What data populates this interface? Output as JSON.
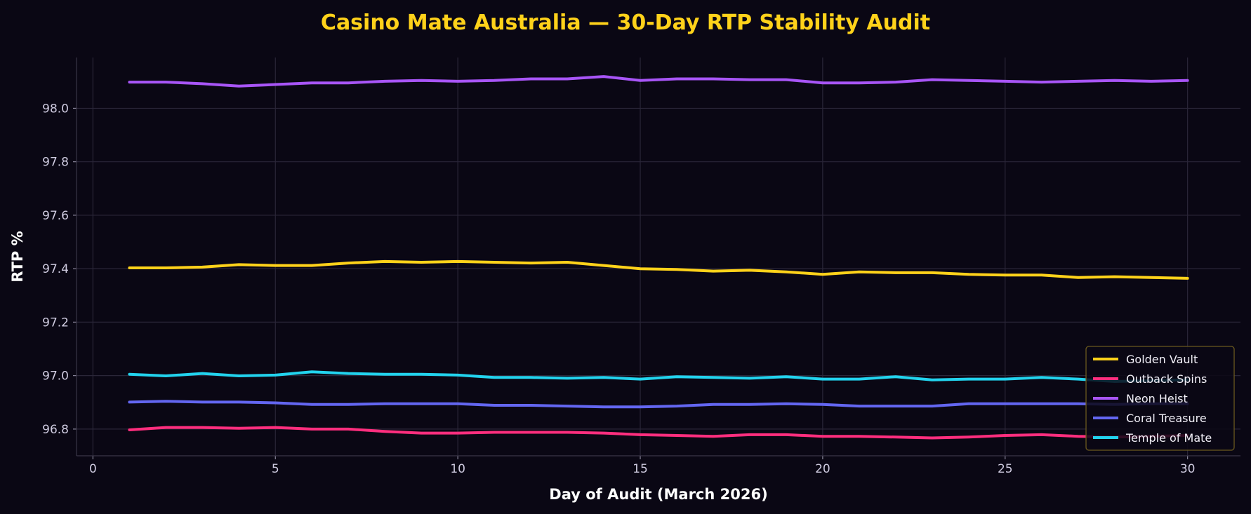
{
  "chart_data": {
    "type": "line",
    "title": "Casino Mate Australia — 30-Day RTP Stability Audit",
    "xlabel": "Day of Audit (March 2026)",
    "ylabel": "RTP %",
    "xlim": [
      -0.45,
      31.45
    ],
    "ylim": [
      96.7,
      98.19
    ],
    "xticks": [
      0,
      5,
      10,
      15,
      20,
      25,
      30
    ],
    "yticks": [
      96.8,
      97.0,
      97.2,
      97.4,
      97.6,
      97.8,
      98.0
    ],
    "ytick_labels": [
      "96.8",
      "97.0",
      "97.2",
      "97.4",
      "97.6",
      "97.8",
      "98.0"
    ],
    "grid": true,
    "legend_position": "lower-right",
    "colors": {
      "background": "#0a0714",
      "title": "#FFD21A",
      "grid": "#2a2638",
      "legend_border": "#6b5a1e"
    },
    "x": [
      1,
      2,
      3,
      4,
      5,
      6,
      7,
      8,
      9,
      10,
      11,
      12,
      13,
      14,
      15,
      16,
      17,
      18,
      19,
      20,
      21,
      22,
      23,
      24,
      25,
      26,
      27,
      28,
      29,
      30
    ],
    "series": [
      {
        "name": "Golden Vault",
        "color": "#FFD21A",
        "values": [
          97.403,
          97.403,
          97.406,
          97.415,
          97.412,
          97.412,
          97.421,
          97.427,
          97.424,
          97.427,
          97.424,
          97.421,
          97.424,
          97.412,
          97.4,
          97.397,
          97.391,
          97.394,
          97.388,
          97.379,
          97.388,
          97.385,
          97.385,
          97.379,
          97.376,
          97.376,
          97.367,
          97.37,
          97.367,
          97.364
        ]
      },
      {
        "name": "Outback Spins",
        "color": "#FF2E7E",
        "values": [
          96.797,
          96.806,
          96.806,
          96.803,
          96.806,
          96.8,
          96.8,
          96.791,
          96.785,
          96.785,
          96.788,
          96.788,
          96.788,
          96.785,
          96.779,
          96.776,
          96.773,
          96.779,
          96.779,
          96.773,
          96.773,
          96.77,
          96.767,
          96.77,
          96.776,
          96.779,
          96.773,
          96.77,
          96.773,
          96.776
        ]
      },
      {
        "name": "Neon Heist",
        "color": "#A855F7",
        "values": [
          98.098,
          98.098,
          98.092,
          98.083,
          98.089,
          98.095,
          98.095,
          98.101,
          98.104,
          98.101,
          98.104,
          98.11,
          98.11,
          98.119,
          98.104,
          98.11,
          98.11,
          98.107,
          98.107,
          98.095,
          98.095,
          98.098,
          98.107,
          98.104,
          98.101,
          98.098,
          98.101,
          98.104,
          98.101,
          98.104
        ]
      },
      {
        "name": "Coral Treasure",
        "color": "#6366F1",
        "values": [
          96.901,
          96.904,
          96.901,
          96.901,
          96.898,
          96.892,
          96.892,
          96.895,
          96.895,
          96.895,
          96.889,
          96.889,
          96.886,
          96.883,
          96.883,
          96.886,
          96.892,
          96.892,
          96.895,
          96.892,
          96.886,
          96.886,
          96.886,
          96.895,
          96.895,
          96.895,
          96.895,
          96.892,
          96.895,
          96.895
        ]
      },
      {
        "name": "Temple of Mate",
        "color": "#22D3EE",
        "values": [
          97.005,
          96.999,
          97.008,
          96.999,
          97.002,
          97.014,
          97.008,
          97.005,
          97.005,
          97.002,
          96.993,
          96.993,
          96.99,
          96.993,
          96.987,
          96.996,
          96.993,
          96.99,
          96.996,
          96.987,
          96.987,
          96.996,
          96.984,
          96.987,
          96.987,
          96.993,
          96.987,
          96.978,
          96.981,
          96.984
        ]
      }
    ]
  }
}
